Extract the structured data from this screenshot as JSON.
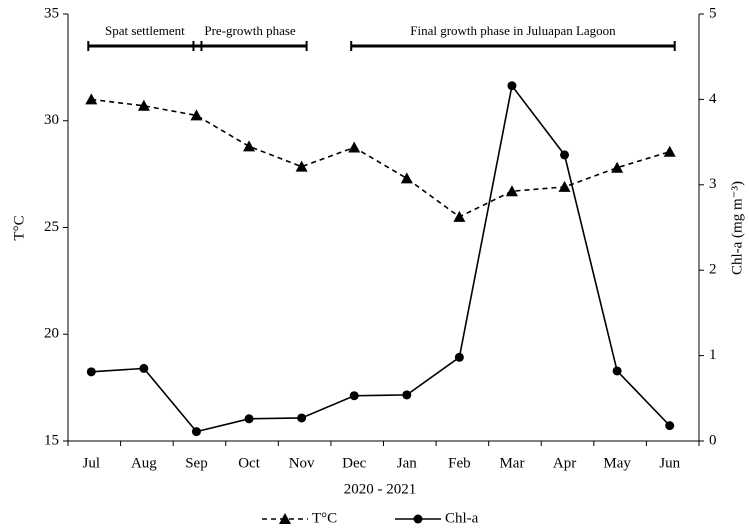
{
  "chart_data": {
    "type": "line",
    "categories": [
      "Jul",
      "Aug",
      "Sep",
      "Oct",
      "Nov",
      "Dec",
      "Jan",
      "Feb",
      "Mar",
      "Apr",
      "May",
      "Jun"
    ],
    "xlabel": "2020 - 2021",
    "ylabel": "T°C",
    "y2label": "Chl-a (mg m⁻³)",
    "ylim": [
      15,
      35
    ],
    "yticks": [
      15,
      20,
      25,
      30,
      35
    ],
    "y2lim": [
      0,
      5
    ],
    "y2ticks": [
      0,
      1,
      2,
      3,
      4,
      5
    ],
    "annotations": [
      "Spat settlement",
      "Pre-growth phase",
      "Final growth phase in Juluapan Lagoon"
    ],
    "series": [
      {
        "name": "T°C",
        "color": "#000000",
        "dash": true,
        "marker": "triangle",
        "values": [
          31.0,
          30.7,
          30.25,
          28.8,
          27.85,
          28.75,
          27.3,
          25.5,
          26.7,
          26.9,
          27.8,
          28.55
        ]
      },
      {
        "name": "Chl-a",
        "color": "#000000",
        "dash": false,
        "marker": "circle",
        "axis": "y2",
        "values": [
          0.81,
          0.85,
          0.11,
          0.26,
          0.27,
          0.53,
          0.54,
          0.98,
          4.16,
          3.35,
          0.82,
          0.18
        ]
      }
    ]
  }
}
